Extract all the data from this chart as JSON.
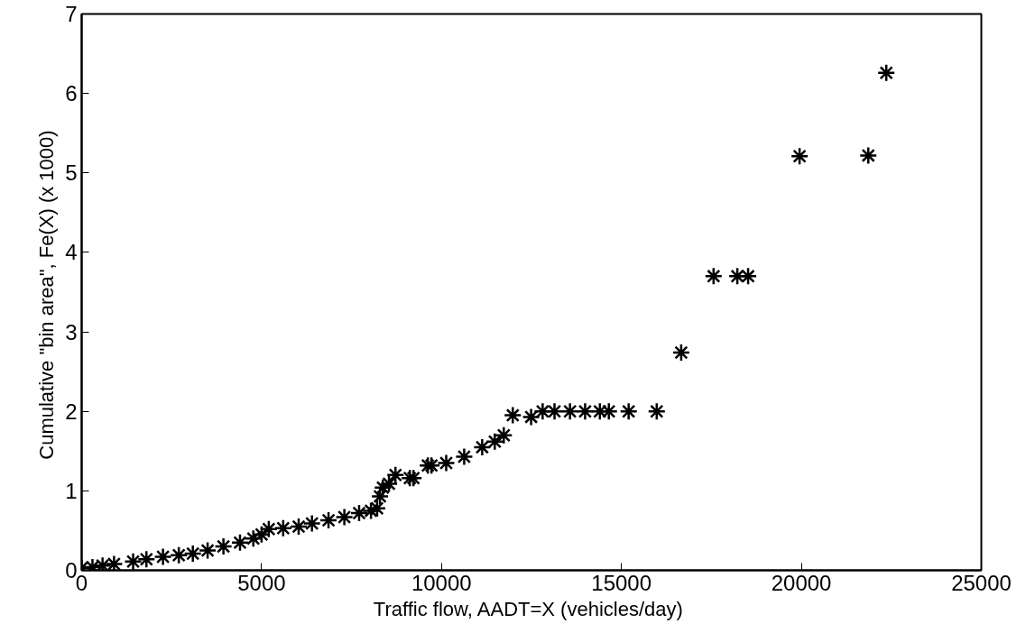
{
  "chart_data": {
    "type": "scatter",
    "xlabel": "Traffic flow,  AADT=X (vehicles/day)",
    "ylabel": "Cumulative \"bin area\",  Fe(X) (x 1000)",
    "x": [
      0,
      300,
      580,
      900,
      1430,
      1800,
      2260,
      2700,
      3090,
      3500,
      3940,
      4400,
      4770,
      5000,
      5200,
      5600,
      6030,
      6400,
      6860,
      7300,
      7710,
      8040,
      8210,
      8290,
      8370,
      8540,
      8720,
      9120,
      9220,
      9620,
      9720,
      10130,
      10630,
      11130,
      11480,
      11730,
      11980,
      12490,
      12810,
      13140,
      13570,
      13990,
      14400,
      14650,
      15200,
      15980,
      16660,
      17560,
      18220,
      18520,
      19950,
      21860,
      22360
    ],
    "series": [
      {
        "color": "#000000",
        "values": [
          0.03,
          0.04,
          0.06,
          0.08,
          0.11,
          0.14,
          0.17,
          0.19,
          0.21,
          0.25,
          0.3,
          0.35,
          0.4,
          0.45,
          0.52,
          0.53,
          0.55,
          0.59,
          0.63,
          0.67,
          0.72,
          0.75,
          0.78,
          0.93,
          1.04,
          1.09,
          1.2,
          1.16,
          1.16,
          1.32,
          1.32,
          1.35,
          1.43,
          1.55,
          1.62,
          1.7,
          1.95,
          1.93,
          2.0,
          2.0,
          2.0,
          2.0,
          2.0,
          2.0,
          2.0,
          2.0,
          2.74,
          3.7,
          3.7,
          3.7,
          5.21,
          5.22,
          6.26
        ]
      }
    ],
    "xlim": [
      0,
      25000
    ],
    "ylim": [
      0,
      7
    ],
    "xticks": [
      0,
      5000,
      10000,
      15000,
      20000,
      25000
    ],
    "yticks": [
      0,
      1,
      2,
      3,
      4,
      5,
      6,
      7
    ],
    "marker": "cross",
    "grid": false
  }
}
